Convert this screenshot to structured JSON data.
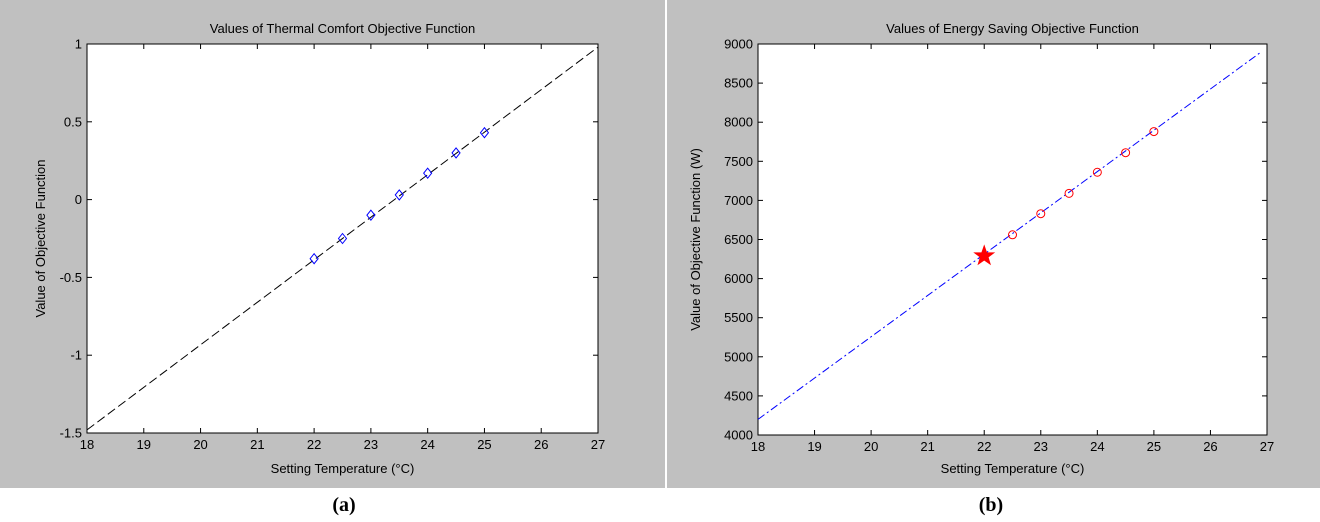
{
  "figure": {
    "panel_a_caption": "(a)",
    "panel_b_caption": "(b)",
    "panel_background": "#c0c0c0"
  },
  "chart_data": [
    {
      "type": "line",
      "title": "Values of Thermal Comfort Objective Function",
      "xlabel": "Setting Temperature (°C)",
      "ylabel": "Value of Objective Function",
      "xlim": [
        18,
        27
      ],
      "ylim": [
        -1.5,
        1
      ],
      "xticks": [
        18,
        19,
        20,
        21,
        22,
        23,
        24,
        25,
        26,
        27
      ],
      "yticks": [
        -1.5,
        -1,
        -0.5,
        0,
        0.5,
        1
      ],
      "ytick_labels": [
        "-1.5",
        "-1",
        "-0.5",
        "0",
        "0.5",
        "1"
      ],
      "grid": false,
      "series": [
        {
          "style": "dashed-line",
          "color": "#000000",
          "x": [
            18,
            27
          ],
          "y": [
            -1.48,
            0.98
          ]
        },
        {
          "style": "diamond-markers",
          "color": "#0000ff",
          "x": [
            22,
            22.5,
            23,
            23.5,
            24,
            24.5,
            25
          ],
          "y": [
            -0.38,
            -0.25,
            -0.1,
            0.03,
            0.17,
            0.3,
            0.43
          ]
        }
      ]
    },
    {
      "type": "line",
      "title": "Values of Energy Saving Objective Function",
      "xlabel": "Setting Temperature (°C)",
      "ylabel": "Value of Objective Function (W)",
      "xlim": [
        18,
        27
      ],
      "ylim": [
        4000,
        9000
      ],
      "xticks": [
        18,
        19,
        20,
        21,
        22,
        23,
        24,
        25,
        26,
        27
      ],
      "yticks": [
        4000,
        4500,
        5000,
        5500,
        6000,
        6500,
        7000,
        7500,
        8000,
        8500,
        9000
      ],
      "ytick_labels": [
        "4000",
        "4500",
        "5000",
        "5500",
        "6000",
        "6500",
        "7000",
        "7500",
        "8000",
        "8500",
        "9000"
      ],
      "grid": false,
      "series": [
        {
          "style": "dash-dot-line",
          "color": "#0000ff",
          "x": [
            18,
            26.9
          ],
          "y": [
            4200,
            8900
          ]
        },
        {
          "style": "circle-markers",
          "color": "#ff0000",
          "x": [
            22.5,
            23,
            23.5,
            24,
            24.5,
            25
          ],
          "y": [
            6560,
            6830,
            7090,
            7360,
            7610,
            7880
          ]
        },
        {
          "style": "star-marker",
          "color": "#ff0000",
          "x": [
            22
          ],
          "y": [
            6290
          ]
        }
      ]
    }
  ]
}
